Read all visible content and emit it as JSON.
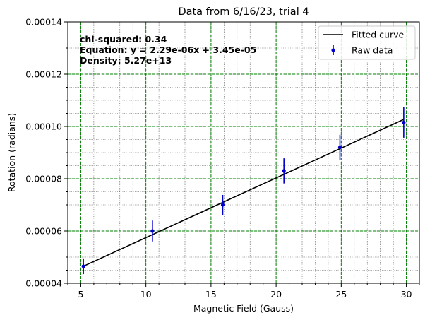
{
  "chart_data": {
    "type": "scatter",
    "title": "Data from 6/16/23, trial 4",
    "xlabel": "Magnetic Field (Gauss)",
    "ylabel": "Rotation (radians)",
    "xlim": [
      4.0,
      31.0
    ],
    "ylim": [
      4e-05,
      0.00014
    ],
    "x_ticks": [
      5,
      10,
      15,
      20,
      25,
      30
    ],
    "x_tick_labels": [
      "5",
      "10",
      "15",
      "20",
      "25",
      "30"
    ],
    "y_ticks": [
      4e-05,
      6e-05,
      8e-05,
      0.0001,
      0.00012,
      0.00014
    ],
    "y_tick_labels": [
      "0.00004",
      "0.00006",
      "0.00008",
      "0.00010",
      "0.00012",
      "0.00014"
    ],
    "grid": {
      "major": true,
      "major_color": "#008000",
      "minor": true,
      "minor_color": "#555555"
    },
    "annotations": [
      "chi-squared: 0.34",
      "Equation: y = 2.29e-06x + 3.45e-05",
      "Density: 5.27e+13"
    ],
    "legend": {
      "placement": "top-right",
      "entries": [
        "Fitted curve",
        "Raw data"
      ]
    },
    "series": [
      {
        "name": "Raw data",
        "type": "errorbar",
        "color": "#0000cc",
        "x": [
          5.2,
          10.5,
          15.9,
          20.6,
          24.9,
          29.8
        ],
        "y": [
          4.65e-05,
          6e-05,
          7e-05,
          8.3e-05,
          9.2e-05,
          0.0001015
        ],
        "yerr": [
          3e-06,
          4e-06,
          3.8e-06,
          4.8e-06,
          4.8e-06,
          5.8e-06
        ]
      },
      {
        "name": "Fitted curve",
        "type": "line",
        "color": "#000000",
        "x": [
          5.2,
          29.8
        ],
        "y": [
          4.65e-05,
          0.0001027
        ]
      }
    ]
  }
}
